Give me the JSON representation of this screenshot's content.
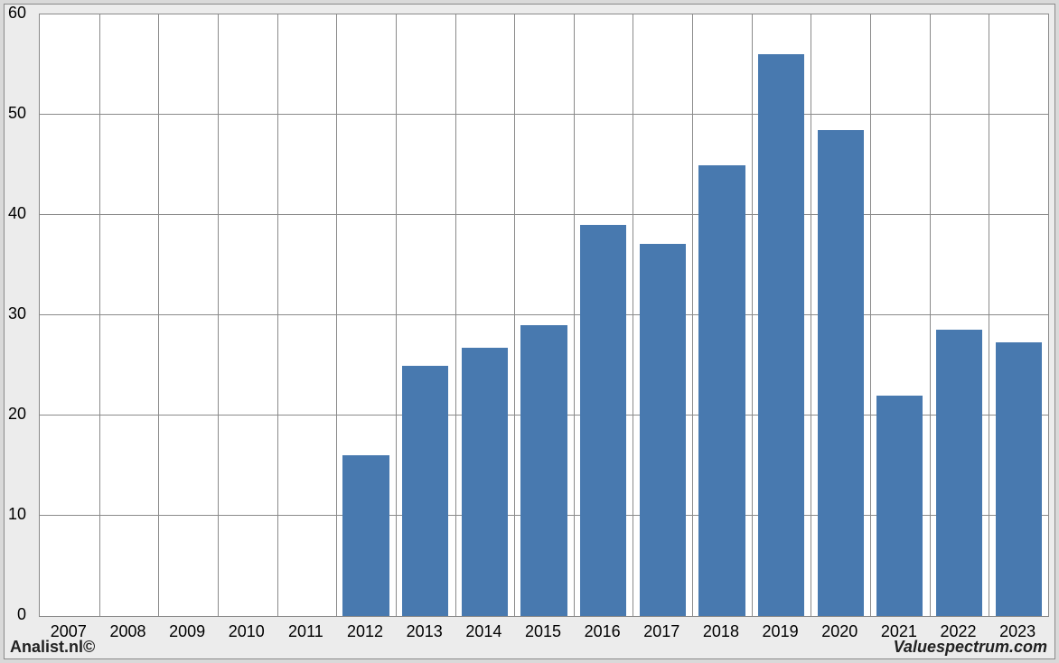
{
  "chart": {
    "type": "bar",
    "categories": [
      "2007",
      "2008",
      "2009",
      "2010",
      "2011",
      "2012",
      "2013",
      "2014",
      "2015",
      "2016",
      "2017",
      "2018",
      "2019",
      "2020",
      "2021",
      "2022",
      "2023"
    ],
    "values": [
      0,
      0,
      0,
      0,
      0,
      16.0,
      25.0,
      26.8,
      29.0,
      39.0,
      37.1,
      45.0,
      56.0,
      48.5,
      22.0,
      28.6,
      27.3
    ],
    "bar_color": "#4879af",
    "plot_background": "#ffffff",
    "outer_background": "#ececec",
    "border_color": "#8a8a8a",
    "grid_color": "#8a8a8a",
    "axis_fontsize": 18,
    "axis_color": "#000000",
    "ylim": [
      0,
      60
    ],
    "ytick_step": 10,
    "bar_width_ratio": 0.78
  },
  "footer": {
    "left": "Analist.nl©",
    "right": "Valuespectrum.com"
  }
}
